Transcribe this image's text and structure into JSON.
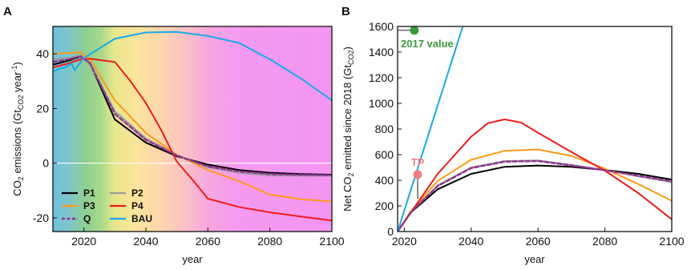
{
  "chart_data": [
    {
      "panel": "A",
      "type": "line",
      "xlabel": "year",
      "ylabel": "CO2 emissions (GtCO2 year-1)",
      "ylabel_parts": {
        "co": "CO",
        "two": "2",
        "mid": " emissions (Gt",
        "sub": "CO2",
        "unit": " year",
        "sup": "-1",
        "close": ")"
      },
      "xlim": [
        2010,
        2100
      ],
      "ylim": [
        -25,
        50
      ],
      "xticks": [
        2020,
        2040,
        2060,
        2080,
        2100
      ],
      "yticks": [
        -20,
        0,
        20,
        40
      ],
      "background": "gradient: blue (pre-2016) → green (~2020) → yellow (~2030) → peach (~2045) → pink/magenta (2055+)",
      "zero_line": true,
      "legend_position": "bottom-left",
      "legend": [
        "P1",
        "P2",
        "P3",
        "P4",
        "Q",
        "BAU"
      ],
      "series": [
        {
          "name": "P1",
          "color": "#000000",
          "dash": "",
          "x": [
            2010,
            2015,
            2019,
            2022,
            2030,
            2040,
            2050,
            2060,
            2070,
            2080,
            2090,
            2100
          ],
          "y": [
            36,
            37.5,
            39,
            36.5,
            16,
            7.5,
            2.5,
            -0.5,
            -2.5,
            -3.5,
            -4,
            -4.2
          ]
        },
        {
          "name": "P2",
          "color": "#9a9a9a",
          "dash": "",
          "x": [
            2010,
            2015,
            2019,
            2022,
            2030,
            2040,
            2050,
            2060,
            2070,
            2080,
            2090,
            2100
          ],
          "y": [
            38,
            38.5,
            39.5,
            36,
            19,
            9,
            3,
            -1.5,
            -3.5,
            -4.5,
            -4.6,
            -4.6
          ]
        },
        {
          "name": "P3",
          "color": "#ff9a1a",
          "dash": "",
          "x": [
            2010,
            2015,
            2019,
            2022,
            2030,
            2040,
            2050,
            2060,
            2070,
            2080,
            2090,
            2100
          ],
          "y": [
            40,
            40.3,
            40.5,
            38,
            23,
            11,
            3,
            -2.5,
            -6.5,
            -11.5,
            -13.2,
            -14
          ]
        },
        {
          "name": "P4",
          "color": "#ee1c1c",
          "dash": "",
          "x": [
            2010,
            2015,
            2019,
            2022,
            2030,
            2035,
            2040,
            2045,
            2050,
            2055,
            2060,
            2070,
            2080,
            2090,
            2100
          ],
          "y": [
            35,
            36.5,
            38,
            38.2,
            37,
            30,
            22,
            12,
            0.5,
            -6,
            -13,
            -16,
            -18,
            -19.5,
            -21
          ]
        },
        {
          "name": "Q",
          "color": "#8e3590",
          "dash": "5,3",
          "x": [
            2010,
            2015,
            2019,
            2022,
            2030,
            2040,
            2050,
            2060,
            2070,
            2080,
            2090,
            2100
          ],
          "y": [
            37,
            38,
            39,
            36.5,
            18,
            8.5,
            2.8,
            -1.2,
            -3,
            -4,
            -4.3,
            -4.4
          ]
        },
        {
          "name": "BAU",
          "color": "#1aa9e8",
          "dash": "",
          "x": [
            2010,
            2012,
            2014,
            2016,
            2017,
            2018,
            2020,
            2025,
            2030,
            2040,
            2050,
            2060,
            2070,
            2080,
            2090,
            2100
          ],
          "y": [
            33.5,
            34.5,
            35,
            36.5,
            34,
            35.5,
            38.5,
            42,
            45.5,
            47.8,
            48,
            46.5,
            44,
            38,
            31,
            23
          ]
        }
      ]
    },
    {
      "panel": "B",
      "type": "line",
      "xlabel": "year",
      "ylabel": "Net CO2 emitted since 2018 (GtCO2)",
      "ylabel_parts": {
        "pre": "Net CO",
        "two": "2",
        "mid": " emitted since 2018 (Gt",
        "sub": "CO2",
        "close": ")"
      },
      "xlim": [
        2018,
        2100
      ],
      "ylim": [
        0,
        1600
      ],
      "xticks": [
        2020,
        2040,
        2060,
        2080,
        2100
      ],
      "yticks": [
        0,
        200,
        400,
        600,
        800,
        1000,
        1200,
        1400,
        1600
      ],
      "annotations": [
        {
          "label": "2017 value",
          "x": 2023,
          "y": 1570,
          "color": "#3a9a3a"
        },
        {
          "label": "TP",
          "x": 2024,
          "y": 445,
          "color": "#f08080"
        }
      ],
      "series": [
        {
          "name": "P1",
          "color": "#000000",
          "dash": "",
          "x": [
            2018,
            2022,
            2030,
            2040,
            2050,
            2060,
            2070,
            2080,
            2090,
            2100
          ],
          "y": [
            0,
            150,
            330,
            450,
            505,
            515,
            505,
            480,
            450,
            405
          ]
        },
        {
          "name": "P2",
          "color": "#9a9a9a",
          "dash": "",
          "x": [
            2018,
            2022,
            2030,
            2040,
            2050,
            2060,
            2070,
            2080,
            2090,
            2100
          ],
          "y": [
            0,
            155,
            360,
            500,
            550,
            555,
            520,
            480,
            430,
            385
          ]
        },
        {
          "name": "P3",
          "color": "#ff9a1a",
          "dash": "",
          "x": [
            2018,
            2022,
            2030,
            2040,
            2050,
            2060,
            2070,
            2080,
            2090,
            2100
          ],
          "y": [
            0,
            160,
            395,
            560,
            630,
            640,
            590,
            490,
            370,
            240
          ]
        },
        {
          "name": "P4",
          "color": "#ee1c1c",
          "dash": "",
          "x": [
            2018,
            2022,
            2030,
            2040,
            2045,
            2050,
            2055,
            2060,
            2070,
            2080,
            2090,
            2100
          ],
          "y": [
            0,
            150,
            450,
            740,
            845,
            875,
            850,
            770,
            620,
            475,
            300,
            95
          ]
        },
        {
          "name": "Q",
          "color": "#8e3590",
          "dash": "5,3",
          "x": [
            2018,
            2022,
            2030,
            2040,
            2050,
            2060,
            2070,
            2080,
            2090,
            2100
          ],
          "y": [
            0,
            152,
            355,
            495,
            545,
            550,
            515,
            478,
            435,
            392
          ]
        },
        {
          "name": "BAU",
          "color": "#1aa9e8",
          "dash": "",
          "x": [
            2018,
            2037.5
          ],
          "y": [
            0,
            1600
          ]
        }
      ]
    }
  ]
}
